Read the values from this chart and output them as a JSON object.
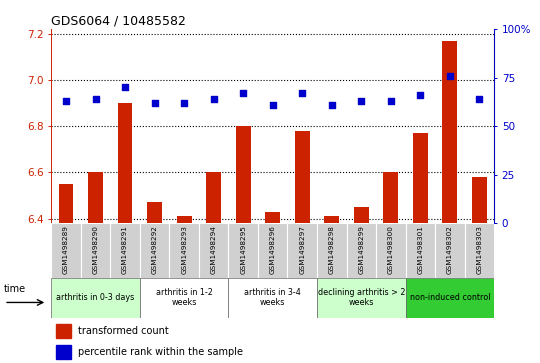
{
  "title": "GDS6064 / 10485582",
  "samples": [
    "GSM1498289",
    "GSM1498290",
    "GSM1498291",
    "GSM1498292",
    "GSM1498293",
    "GSM1498294",
    "GSM1498295",
    "GSM1498296",
    "GSM1498297",
    "GSM1498298",
    "GSM1498299",
    "GSM1498300",
    "GSM1498301",
    "GSM1498302",
    "GSM1498303"
  ],
  "red_values": [
    6.55,
    6.6,
    6.9,
    6.47,
    6.41,
    6.6,
    6.8,
    6.43,
    6.78,
    6.41,
    6.45,
    6.6,
    6.77,
    7.17,
    6.58
  ],
  "blue_values": [
    63,
    64,
    70,
    62,
    62,
    64,
    67,
    61,
    67,
    61,
    63,
    63,
    66,
    76,
    64
  ],
  "ylim_left": [
    6.38,
    7.22
  ],
  "ylim_right": [
    0,
    100
  ],
  "yticks_left": [
    6.4,
    6.6,
    6.8,
    7.0,
    7.2
  ],
  "yticks_right": [
    0,
    25,
    50,
    75,
    100
  ],
  "ytick_right_labels": [
    "0",
    "25",
    "50",
    "75",
    "100%"
  ],
  "groups": [
    {
      "label": "arthritis in 0-3 days",
      "start": 0,
      "end": 3,
      "color": "#ccffcc"
    },
    {
      "label": "arthritis in 1-2\nweeks",
      "start": 3,
      "end": 6,
      "color": "#ffffff"
    },
    {
      "label": "arthritis in 3-4\nweeks",
      "start": 6,
      "end": 9,
      "color": "#ffffff"
    },
    {
      "label": "declining arthritis > 2\nweeks",
      "start": 9,
      "end": 12,
      "color": "#ccffcc"
    },
    {
      "label": "non-induced control",
      "start": 12,
      "end": 15,
      "color": "#33cc33"
    }
  ],
  "bar_color": "#cc2200",
  "dot_color": "#0000cc",
  "left_label_color": "#cc2200",
  "right_label_color": "#0000cc",
  "sample_bg": "#d0d0d0",
  "bar_bottom": 6.38
}
